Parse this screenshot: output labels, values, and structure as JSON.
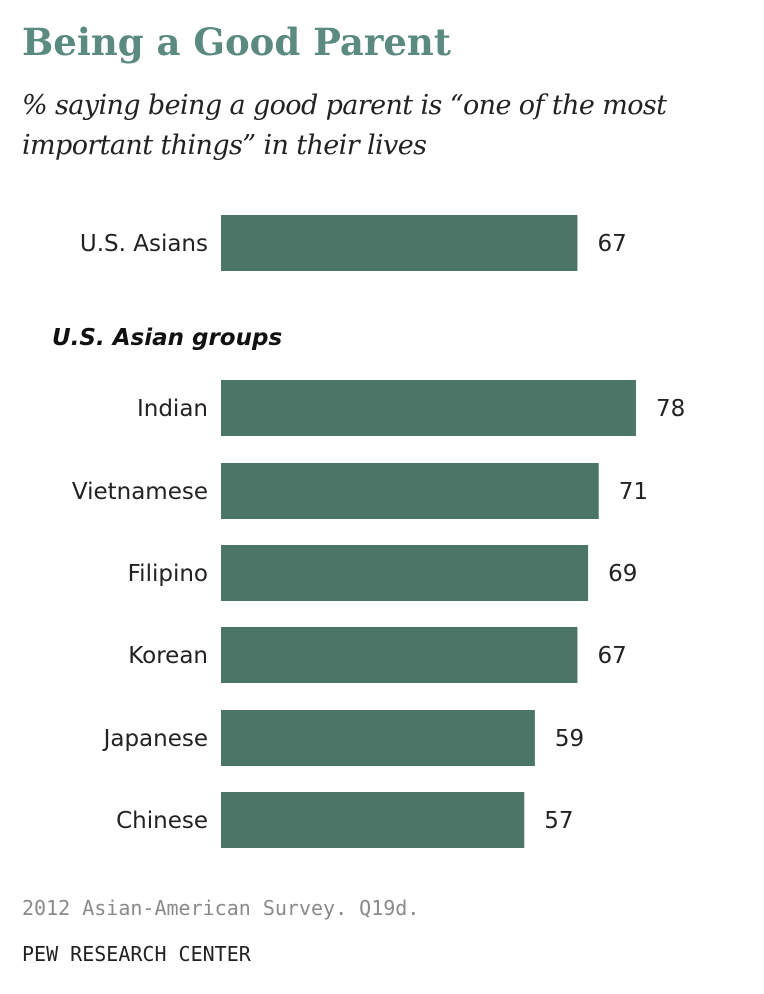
{
  "chart_data": {
    "type": "bar",
    "orientation": "horizontal",
    "title": "Being a Good Parent",
    "subtitle": "% saying being a good parent is “one of the most important things” in their lives",
    "group_heading": "U.S. Asian groups",
    "categories": [
      "U.S. Asians",
      "Indian",
      "Vietnamese",
      "Filipino",
      "Korean",
      "Japanese",
      "Chinese"
    ],
    "values": [
      67,
      78,
      71,
      69,
      67,
      59,
      57
    ],
    "bar_color": "#4a7567",
    "grid": false,
    "legend": "none"
  },
  "footer": {
    "note": "2012 Asian-American Survey. Q19d.",
    "source": "PEW RESEARCH CENTER"
  }
}
